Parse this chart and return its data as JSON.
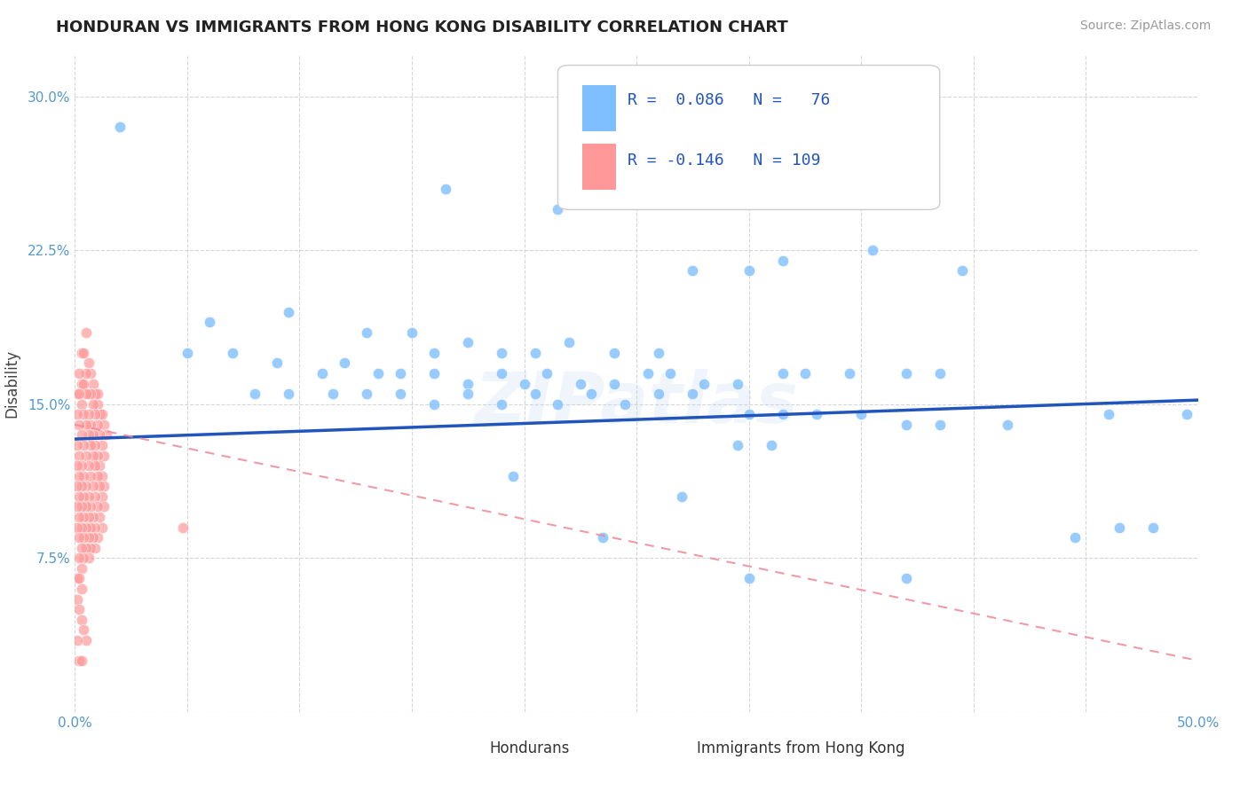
{
  "title": "HONDURAN VS IMMIGRANTS FROM HONG KONG DISABILITY CORRELATION CHART",
  "source": "Source: ZipAtlas.com",
  "ylabel": "Disability",
  "xlim": [
    0.0,
    0.5
  ],
  "ylim": [
    0.0,
    0.32
  ],
  "yticks": [
    0.0,
    0.075,
    0.15,
    0.225,
    0.3
  ],
  "yticklabels": [
    "",
    "7.5%",
    "15.0%",
    "22.5%",
    "30.0%"
  ],
  "xtick_first": "0.0%",
  "xtick_last": "50.0%",
  "grid_color": "#cccccc",
  "background_color": "#ffffff",
  "honduran_color": "#7fbfff",
  "hk_color": "#ff9999",
  "trendline_blue": "#2255bb",
  "trendline_pink": "#ee8899",
  "honduran_R": 0.086,
  "honduran_N": 76,
  "hk_R": -0.146,
  "hk_N": 109,
  "honduran_scatter": [
    [
      0.02,
      0.285
    ],
    [
      0.165,
      0.255
    ],
    [
      0.215,
      0.245
    ],
    [
      0.275,
      0.215
    ],
    [
      0.3,
      0.215
    ],
    [
      0.315,
      0.22
    ],
    [
      0.355,
      0.225
    ],
    [
      0.395,
      0.215
    ],
    [
      0.06,
      0.19
    ],
    [
      0.095,
      0.195
    ],
    [
      0.13,
      0.185
    ],
    [
      0.15,
      0.185
    ],
    [
      0.16,
      0.175
    ],
    [
      0.175,
      0.18
    ],
    [
      0.19,
      0.175
    ],
    [
      0.205,
      0.175
    ],
    [
      0.22,
      0.18
    ],
    [
      0.24,
      0.175
    ],
    [
      0.26,
      0.175
    ],
    [
      0.05,
      0.175
    ],
    [
      0.07,
      0.175
    ],
    [
      0.09,
      0.17
    ],
    [
      0.11,
      0.165
    ],
    [
      0.12,
      0.17
    ],
    [
      0.135,
      0.165
    ],
    [
      0.145,
      0.165
    ],
    [
      0.16,
      0.165
    ],
    [
      0.175,
      0.16
    ],
    [
      0.19,
      0.165
    ],
    [
      0.2,
      0.16
    ],
    [
      0.21,
      0.165
    ],
    [
      0.225,
      0.16
    ],
    [
      0.24,
      0.16
    ],
    [
      0.255,
      0.165
    ],
    [
      0.265,
      0.165
    ],
    [
      0.28,
      0.16
    ],
    [
      0.295,
      0.16
    ],
    [
      0.315,
      0.165
    ],
    [
      0.325,
      0.165
    ],
    [
      0.345,
      0.165
    ],
    [
      0.37,
      0.165
    ],
    [
      0.385,
      0.165
    ],
    [
      0.08,
      0.155
    ],
    [
      0.095,
      0.155
    ],
    [
      0.115,
      0.155
    ],
    [
      0.13,
      0.155
    ],
    [
      0.145,
      0.155
    ],
    [
      0.16,
      0.15
    ],
    [
      0.175,
      0.155
    ],
    [
      0.19,
      0.15
    ],
    [
      0.205,
      0.155
    ],
    [
      0.215,
      0.15
    ],
    [
      0.23,
      0.155
    ],
    [
      0.245,
      0.15
    ],
    [
      0.26,
      0.155
    ],
    [
      0.275,
      0.155
    ],
    [
      0.3,
      0.145
    ],
    [
      0.315,
      0.145
    ],
    [
      0.33,
      0.145
    ],
    [
      0.35,
      0.145
    ],
    [
      0.37,
      0.14
    ],
    [
      0.385,
      0.14
    ],
    [
      0.415,
      0.14
    ],
    [
      0.46,
      0.145
    ],
    [
      0.295,
      0.13
    ],
    [
      0.31,
      0.13
    ],
    [
      0.195,
      0.115
    ],
    [
      0.27,
      0.105
    ],
    [
      0.48,
      0.09
    ],
    [
      0.235,
      0.085
    ],
    [
      0.3,
      0.065
    ],
    [
      0.465,
      0.09
    ],
    [
      0.37,
      0.065
    ],
    [
      0.445,
      0.085
    ],
    [
      0.495,
      0.145
    ]
  ],
  "hk_scatter": [
    [
      0.005,
      0.185
    ],
    [
      0.006,
      0.17
    ],
    [
      0.007,
      0.165
    ],
    [
      0.008,
      0.16
    ],
    [
      0.009,
      0.155
    ],
    [
      0.01,
      0.15
    ],
    [
      0.01,
      0.155
    ],
    [
      0.011,
      0.145
    ],
    [
      0.012,
      0.145
    ],
    [
      0.013,
      0.14
    ],
    [
      0.014,
      0.135
    ],
    [
      0.003,
      0.175
    ],
    [
      0.004,
      0.175
    ],
    [
      0.005,
      0.165
    ],
    [
      0.006,
      0.155
    ],
    [
      0.007,
      0.155
    ],
    [
      0.008,
      0.15
    ],
    [
      0.009,
      0.145
    ],
    [
      0.01,
      0.14
    ],
    [
      0.011,
      0.135
    ],
    [
      0.012,
      0.13
    ],
    [
      0.013,
      0.125
    ],
    [
      0.002,
      0.165
    ],
    [
      0.003,
      0.16
    ],
    [
      0.004,
      0.16
    ],
    [
      0.005,
      0.155
    ],
    [
      0.006,
      0.145
    ],
    [
      0.007,
      0.14
    ],
    [
      0.008,
      0.135
    ],
    [
      0.009,
      0.13
    ],
    [
      0.01,
      0.125
    ],
    [
      0.011,
      0.12
    ],
    [
      0.012,
      0.115
    ],
    [
      0.013,
      0.11
    ],
    [
      0.001,
      0.155
    ],
    [
      0.002,
      0.155
    ],
    [
      0.003,
      0.15
    ],
    [
      0.004,
      0.145
    ],
    [
      0.005,
      0.14
    ],
    [
      0.006,
      0.135
    ],
    [
      0.007,
      0.13
    ],
    [
      0.008,
      0.125
    ],
    [
      0.009,
      0.12
    ],
    [
      0.01,
      0.115
    ],
    [
      0.011,
      0.11
    ],
    [
      0.012,
      0.105
    ],
    [
      0.013,
      0.1
    ],
    [
      0.001,
      0.145
    ],
    [
      0.002,
      0.14
    ],
    [
      0.003,
      0.135
    ],
    [
      0.004,
      0.13
    ],
    [
      0.005,
      0.125
    ],
    [
      0.006,
      0.12
    ],
    [
      0.007,
      0.115
    ],
    [
      0.008,
      0.11
    ],
    [
      0.009,
      0.105
    ],
    [
      0.01,
      0.1
    ],
    [
      0.011,
      0.095
    ],
    [
      0.012,
      0.09
    ],
    [
      0.001,
      0.13
    ],
    [
      0.002,
      0.125
    ],
    [
      0.003,
      0.12
    ],
    [
      0.004,
      0.115
    ],
    [
      0.005,
      0.11
    ],
    [
      0.006,
      0.105
    ],
    [
      0.007,
      0.1
    ],
    [
      0.008,
      0.095
    ],
    [
      0.009,
      0.09
    ],
    [
      0.01,
      0.085
    ],
    [
      0.001,
      0.12
    ],
    [
      0.002,
      0.115
    ],
    [
      0.003,
      0.11
    ],
    [
      0.004,
      0.105
    ],
    [
      0.005,
      0.1
    ],
    [
      0.006,
      0.095
    ],
    [
      0.007,
      0.09
    ],
    [
      0.008,
      0.085
    ],
    [
      0.009,
      0.08
    ],
    [
      0.001,
      0.11
    ],
    [
      0.002,
      0.105
    ],
    [
      0.003,
      0.1
    ],
    [
      0.004,
      0.095
    ],
    [
      0.005,
      0.09
    ],
    [
      0.006,
      0.085
    ],
    [
      0.007,
      0.08
    ],
    [
      0.001,
      0.1
    ],
    [
      0.002,
      0.095
    ],
    [
      0.003,
      0.09
    ],
    [
      0.004,
      0.085
    ],
    [
      0.005,
      0.08
    ],
    [
      0.006,
      0.075
    ],
    [
      0.001,
      0.09
    ],
    [
      0.002,
      0.085
    ],
    [
      0.003,
      0.08
    ],
    [
      0.004,
      0.075
    ],
    [
      0.002,
      0.075
    ],
    [
      0.003,
      0.07
    ],
    [
      0.001,
      0.065
    ],
    [
      0.002,
      0.065
    ],
    [
      0.003,
      0.06
    ],
    [
      0.001,
      0.055
    ],
    [
      0.002,
      0.05
    ],
    [
      0.003,
      0.045
    ],
    [
      0.004,
      0.04
    ],
    [
      0.005,
      0.035
    ],
    [
      0.001,
      0.035
    ],
    [
      0.002,
      0.025
    ],
    [
      0.003,
      0.025
    ],
    [
      0.048,
      0.09
    ]
  ],
  "honduran_trendline": [
    [
      0.0,
      0.133
    ],
    [
      0.5,
      0.152
    ]
  ],
  "hk_trendline": [
    [
      0.0,
      0.14
    ],
    [
      0.5,
      0.025
    ]
  ]
}
